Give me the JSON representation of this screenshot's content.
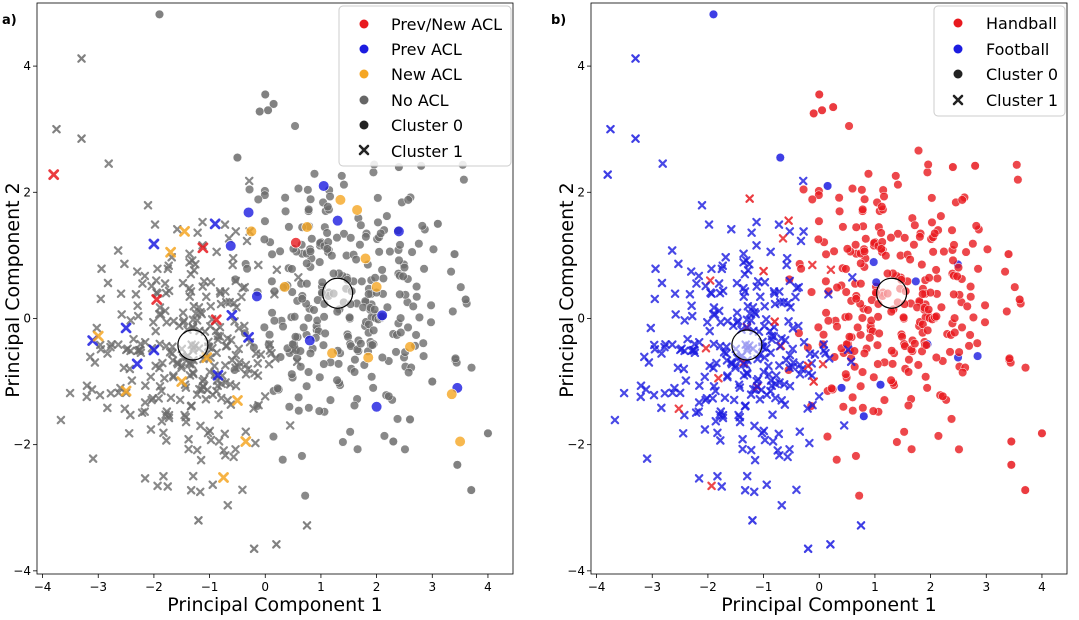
{
  "chart_data": [
    {
      "panel_label": "a)",
      "type": "scatter",
      "xlabel": "Principal Component 1",
      "ylabel": "Principal Component 2",
      "xlim": [
        -4.1,
        4.45
      ],
      "ylim": [
        -4.05,
        5.0
      ],
      "xticks": [
        -4,
        -3,
        -2,
        -1,
        0,
        1,
        2,
        3,
        4
      ],
      "yticks": [
        -4,
        -2,
        0,
        2,
        4
      ],
      "legend_position": "top-right",
      "legend": [
        {
          "label": "Prev/New ACL",
          "marker": "circle",
          "color": "#e8191e"
        },
        {
          "label": "Prev ACL",
          "marker": "circle",
          "color": "#1c1ce0"
        },
        {
          "label": "New ACL",
          "marker": "circle",
          "color": "#f5a623"
        },
        {
          "label": "No ACL",
          "marker": "circle",
          "color": "#666666"
        },
        {
          "label": "Cluster 0",
          "marker": "circle",
          "color": "#222222"
        },
        {
          "label": "Cluster 1",
          "marker": "x",
          "color": "#222222"
        }
      ],
      "centroids": [
        {
          "name": "Cluster 0 centroid",
          "x": 1.3,
          "y": 0.4
        },
        {
          "name": "Cluster 1 centroid",
          "x": -1.3,
          "y": -0.42
        }
      ],
      "highlighted_points": [
        {
          "x": -3.8,
          "y": 2.28,
          "group": "Prev/New ACL",
          "cluster": 1
        },
        {
          "x": -1.12,
          "y": 1.12,
          "group": "Prev/New ACL",
          "cluster": 1
        },
        {
          "x": -0.88,
          "y": -0.02,
          "group": "Prev/New ACL",
          "cluster": 1
        },
        {
          "x": -1.95,
          "y": 0.3,
          "group": "Prev/New ACL",
          "cluster": 1
        },
        {
          "x": 0.55,
          "y": 1.2,
          "group": "Prev/New ACL",
          "cluster": 0
        },
        {
          "x": -0.9,
          "y": 1.5,
          "group": "Prev ACL",
          "cluster": 1
        },
        {
          "x": -2.0,
          "y": 1.18,
          "group": "Prev ACL",
          "cluster": 1
        },
        {
          "x": -0.3,
          "y": -0.3,
          "group": "Prev ACL",
          "cluster": 1
        },
        {
          "x": -2.3,
          "y": -0.72,
          "group": "Prev ACL",
          "cluster": 1
        },
        {
          "x": -3.1,
          "y": -0.35,
          "group": "Prev ACL",
          "cluster": 1
        },
        {
          "x": -2.0,
          "y": -0.5,
          "group": "Prev ACL",
          "cluster": 1
        },
        {
          "x": -0.6,
          "y": 0.05,
          "group": "Prev ACL",
          "cluster": 1
        },
        {
          "x": -0.85,
          "y": -0.9,
          "group": "Prev ACL",
          "cluster": 1
        },
        {
          "x": -2.5,
          "y": -0.15,
          "group": "Prev ACL",
          "cluster": 1
        },
        {
          "x": -0.62,
          "y": 1.15,
          "group": "Prev ACL",
          "cluster": 0
        },
        {
          "x": 2.4,
          "y": 1.38,
          "group": "Prev ACL",
          "cluster": 0
        },
        {
          "x": 3.45,
          "y": -1.1,
          "group": "Prev ACL",
          "cluster": 0
        },
        {
          "x": 2.0,
          "y": -1.4,
          "group": "Prev ACL",
          "cluster": 0
        },
        {
          "x": -0.15,
          "y": 0.35,
          "group": "Prev ACL",
          "cluster": 0
        },
        {
          "x": 1.3,
          "y": 1.55,
          "group": "Prev ACL",
          "cluster": 0
        },
        {
          "x": 0.8,
          "y": -0.35,
          "group": "Prev ACL",
          "cluster": 0
        },
        {
          "x": 2.1,
          "y": 0.05,
          "group": "Prev ACL",
          "cluster": 0
        },
        {
          "x": -0.3,
          "y": 1.68,
          "group": "Prev ACL",
          "cluster": 0
        },
        {
          "x": 1.05,
          "y": 2.1,
          "group": "Prev ACL",
          "cluster": 0
        },
        {
          "x": -3.0,
          "y": -0.28,
          "group": "New ACL",
          "cluster": 1
        },
        {
          "x": -2.5,
          "y": -1.15,
          "group": "New ACL",
          "cluster": 1
        },
        {
          "x": -1.7,
          "y": 1.05,
          "group": "New ACL",
          "cluster": 1
        },
        {
          "x": -1.45,
          "y": 1.38,
          "group": "New ACL",
          "cluster": 1
        },
        {
          "x": -0.75,
          "y": -2.52,
          "group": "New ACL",
          "cluster": 1
        },
        {
          "x": -0.5,
          "y": -1.3,
          "group": "New ACL",
          "cluster": 1
        },
        {
          "x": -1.5,
          "y": -1.0,
          "group": "New ACL",
          "cluster": 1
        },
        {
          "x": -0.35,
          "y": -1.95,
          "group": "New ACL",
          "cluster": 1
        },
        {
          "x": -1.05,
          "y": -0.62,
          "group": "New ACL",
          "cluster": 1
        },
        {
          "x": -0.25,
          "y": 1.38,
          "group": "New ACL",
          "cluster": 0
        },
        {
          "x": 1.35,
          "y": 1.88,
          "group": "New ACL",
          "cluster": 0
        },
        {
          "x": 1.65,
          "y": 1.72,
          "group": "New ACL",
          "cluster": 0
        },
        {
          "x": 3.5,
          "y": -1.95,
          "group": "New ACL",
          "cluster": 0
        },
        {
          "x": 3.35,
          "y": -1.2,
          "group": "New ACL",
          "cluster": 0
        },
        {
          "x": 1.85,
          "y": -0.62,
          "group": "New ACL",
          "cluster": 0
        },
        {
          "x": 1.2,
          "y": -0.55,
          "group": "New ACL",
          "cluster": 0
        },
        {
          "x": 0.35,
          "y": 0.5,
          "group": "New ACL",
          "cluster": 0
        },
        {
          "x": 2.6,
          "y": -0.45,
          "group": "New ACL",
          "cluster": 0
        },
        {
          "x": 1.8,
          "y": 0.95,
          "group": "New ACL",
          "cluster": 0
        },
        {
          "x": 0.75,
          "y": 1.45,
          "group": "New ACL",
          "cluster": 0
        },
        {
          "x": 2.0,
          "y": 0.5,
          "group": "New ACL",
          "cluster": 0
        }
      ],
      "fixed_points": [
        {
          "x": -1.9,
          "y": 4.82,
          "cluster": 0
        },
        {
          "x": -3.3,
          "y": 4.12,
          "cluster": 1
        },
        {
          "x": -3.75,
          "y": 3.0,
          "cluster": 1
        },
        {
          "x": -3.3,
          "y": 2.85,
          "cluster": 1
        },
        {
          "x": -1.2,
          "y": -3.2,
          "cluster": 1
        },
        {
          "x": -0.2,
          "y": -3.65,
          "cluster": 1
        },
        {
          "x": 0.2,
          "y": -3.58,
          "cluster": 1
        },
        {
          "x": 0.75,
          "y": -3.28,
          "cluster": 1
        },
        {
          "x": -0.5,
          "y": 2.55,
          "cluster": 0
        },
        {
          "x": 0.0,
          "y": 3.55,
          "cluster": 0
        },
        {
          "x": 0.05,
          "y": 3.3,
          "cluster": 0
        },
        {
          "x": 0.15,
          "y": 3.4,
          "cluster": 0
        },
        {
          "x": -0.1,
          "y": 3.28,
          "cluster": 0
        },
        {
          "x": 3.7,
          "y": -2.72,
          "cluster": 0
        },
        {
          "x": 4.0,
          "y": -1.82,
          "cluster": 0
        },
        {
          "x": 3.45,
          "y": -2.32,
          "cluster": 0
        },
        {
          "x": 3.4,
          "y": 1.02,
          "cluster": 0
        },
        {
          "x": 3.6,
          "y": 0.3,
          "cluster": 0
        },
        {
          "x": 3.1,
          "y": 1.5,
          "cluster": 0
        },
        {
          "x": 2.8,
          "y": 2.42,
          "cluster": 0
        },
        {
          "x": 2.4,
          "y": 2.4,
          "cluster": 0
        },
        {
          "x": 2.3,
          "y": -1.95,
          "cluster": 0
        },
        {
          "x": 2.6,
          "y": -1.6,
          "cluster": 0
        },
        {
          "x": 3.0,
          "y": -1.0,
          "cluster": 0
        }
      ],
      "synthetic_cloud": {
        "seed": 11,
        "cluster0_n": 310,
        "cluster1_n": 300,
        "color": "#6b6b6b"
      }
    },
    {
      "panel_label": "b)",
      "type": "scatter",
      "xlabel": "Principal Component 1",
      "ylabel": "Principal Component 2",
      "xlim": [
        -4.1,
        4.45
      ],
      "ylim": [
        -4.05,
        5.0
      ],
      "xticks": [
        -4,
        -3,
        -2,
        -1,
        0,
        1,
        2,
        3,
        4
      ],
      "yticks": [
        -4,
        -2,
        0,
        2,
        4
      ],
      "legend_position": "top-right",
      "legend": [
        {
          "label": "Handball",
          "marker": "circle",
          "color": "#e8191e"
        },
        {
          "label": "Football",
          "marker": "circle",
          "color": "#1c1ce0"
        },
        {
          "label": "Cluster 0",
          "marker": "circle",
          "color": "#222222"
        },
        {
          "label": "Cluster 1",
          "marker": "x",
          "color": "#222222"
        }
      ],
      "centroids": [
        {
          "name": "Cluster 0 centroid",
          "x": 1.3,
          "y": 0.4
        },
        {
          "name": "Cluster 1 centroid",
          "x": -1.3,
          "y": -0.42
        }
      ],
      "color_rule": "Handball (red) for cluster 0 points, Football (blue) for cluster 1 points, with occasional exceptions",
      "fixed_points": [
        {
          "x": -1.9,
          "y": 4.82,
          "cluster": 0,
          "group": "Football"
        },
        {
          "x": -3.3,
          "y": 4.12,
          "cluster": 1,
          "group": "Football"
        },
        {
          "x": -3.75,
          "y": 3.0,
          "cluster": 1,
          "group": "Football"
        },
        {
          "x": -3.3,
          "y": 2.85,
          "cluster": 1,
          "group": "Football"
        },
        {
          "x": -3.8,
          "y": 2.28,
          "cluster": 1,
          "group": "Football"
        },
        {
          "x": -1.2,
          "y": -3.2,
          "cluster": 1,
          "group": "Football"
        },
        {
          "x": -0.2,
          "y": -3.65,
          "cluster": 1,
          "group": "Football"
        },
        {
          "x": 0.2,
          "y": -3.58,
          "cluster": 1,
          "group": "Football"
        },
        {
          "x": 0.75,
          "y": -3.28,
          "cluster": 1,
          "group": "Football"
        },
        {
          "x": -0.7,
          "y": 2.55,
          "cluster": 0,
          "group": "Football"
        },
        {
          "x": 0.0,
          "y": 3.55,
          "cluster": 0,
          "group": "Handball"
        },
        {
          "x": 0.05,
          "y": 3.3,
          "cluster": 0,
          "group": "Handball"
        },
        {
          "x": 0.25,
          "y": 3.35,
          "cluster": 0,
          "group": "Handball"
        },
        {
          "x": -0.1,
          "y": 3.25,
          "cluster": 0,
          "group": "Handball"
        },
        {
          "x": 3.7,
          "y": -2.72,
          "cluster": 0,
          "group": "Handball"
        },
        {
          "x": 4.0,
          "y": -1.82,
          "cluster": 0,
          "group": "Handball"
        },
        {
          "x": 3.45,
          "y": -2.32,
          "cluster": 0,
          "group": "Handball"
        },
        {
          "x": 3.45,
          "y": -1.95,
          "cluster": 0,
          "group": "Handball"
        },
        {
          "x": 3.4,
          "y": 1.02,
          "cluster": 0,
          "group": "Handball"
        },
        {
          "x": 3.6,
          "y": 0.3,
          "cluster": 0,
          "group": "Handball"
        },
        {
          "x": 2.8,
          "y": 2.42,
          "cluster": 0,
          "group": "Handball"
        },
        {
          "x": 2.4,
          "y": 2.4,
          "cluster": 0,
          "group": "Handball"
        },
        {
          "x": 0.4,
          "y": -1.1,
          "cluster": 0,
          "group": "Football"
        },
        {
          "x": 0.8,
          "y": -1.55,
          "cluster": 0,
          "group": "Football"
        },
        {
          "x": 1.1,
          "y": -1.05,
          "cluster": 0,
          "group": "Football"
        },
        {
          "x": 0.15,
          "y": 2.1,
          "cluster": 0,
          "group": "Football"
        },
        {
          "x": -0.55,
          "y": 1.55,
          "cluster": 1,
          "group": "Handball"
        },
        {
          "x": -1.25,
          "y": 1.9,
          "cluster": 1,
          "group": "Handball"
        },
        {
          "x": -0.8,
          "y": -0.05,
          "cluster": 1,
          "group": "Handball"
        },
        {
          "x": -1.0,
          "y": 0.75,
          "cluster": 1,
          "group": "Handball"
        },
        {
          "x": -0.2,
          "y": -0.75,
          "cluster": 1,
          "group": "Handball"
        },
        {
          "x": -0.1,
          "y": -1.0,
          "cluster": 1,
          "group": "Handball"
        }
      ],
      "synthetic_cloud": {
        "seed": 11,
        "cluster0_n": 310,
        "cluster1_n": 300,
        "color_cluster0": "#e8191e",
        "color_cluster1": "#1c1ce0"
      }
    }
  ]
}
